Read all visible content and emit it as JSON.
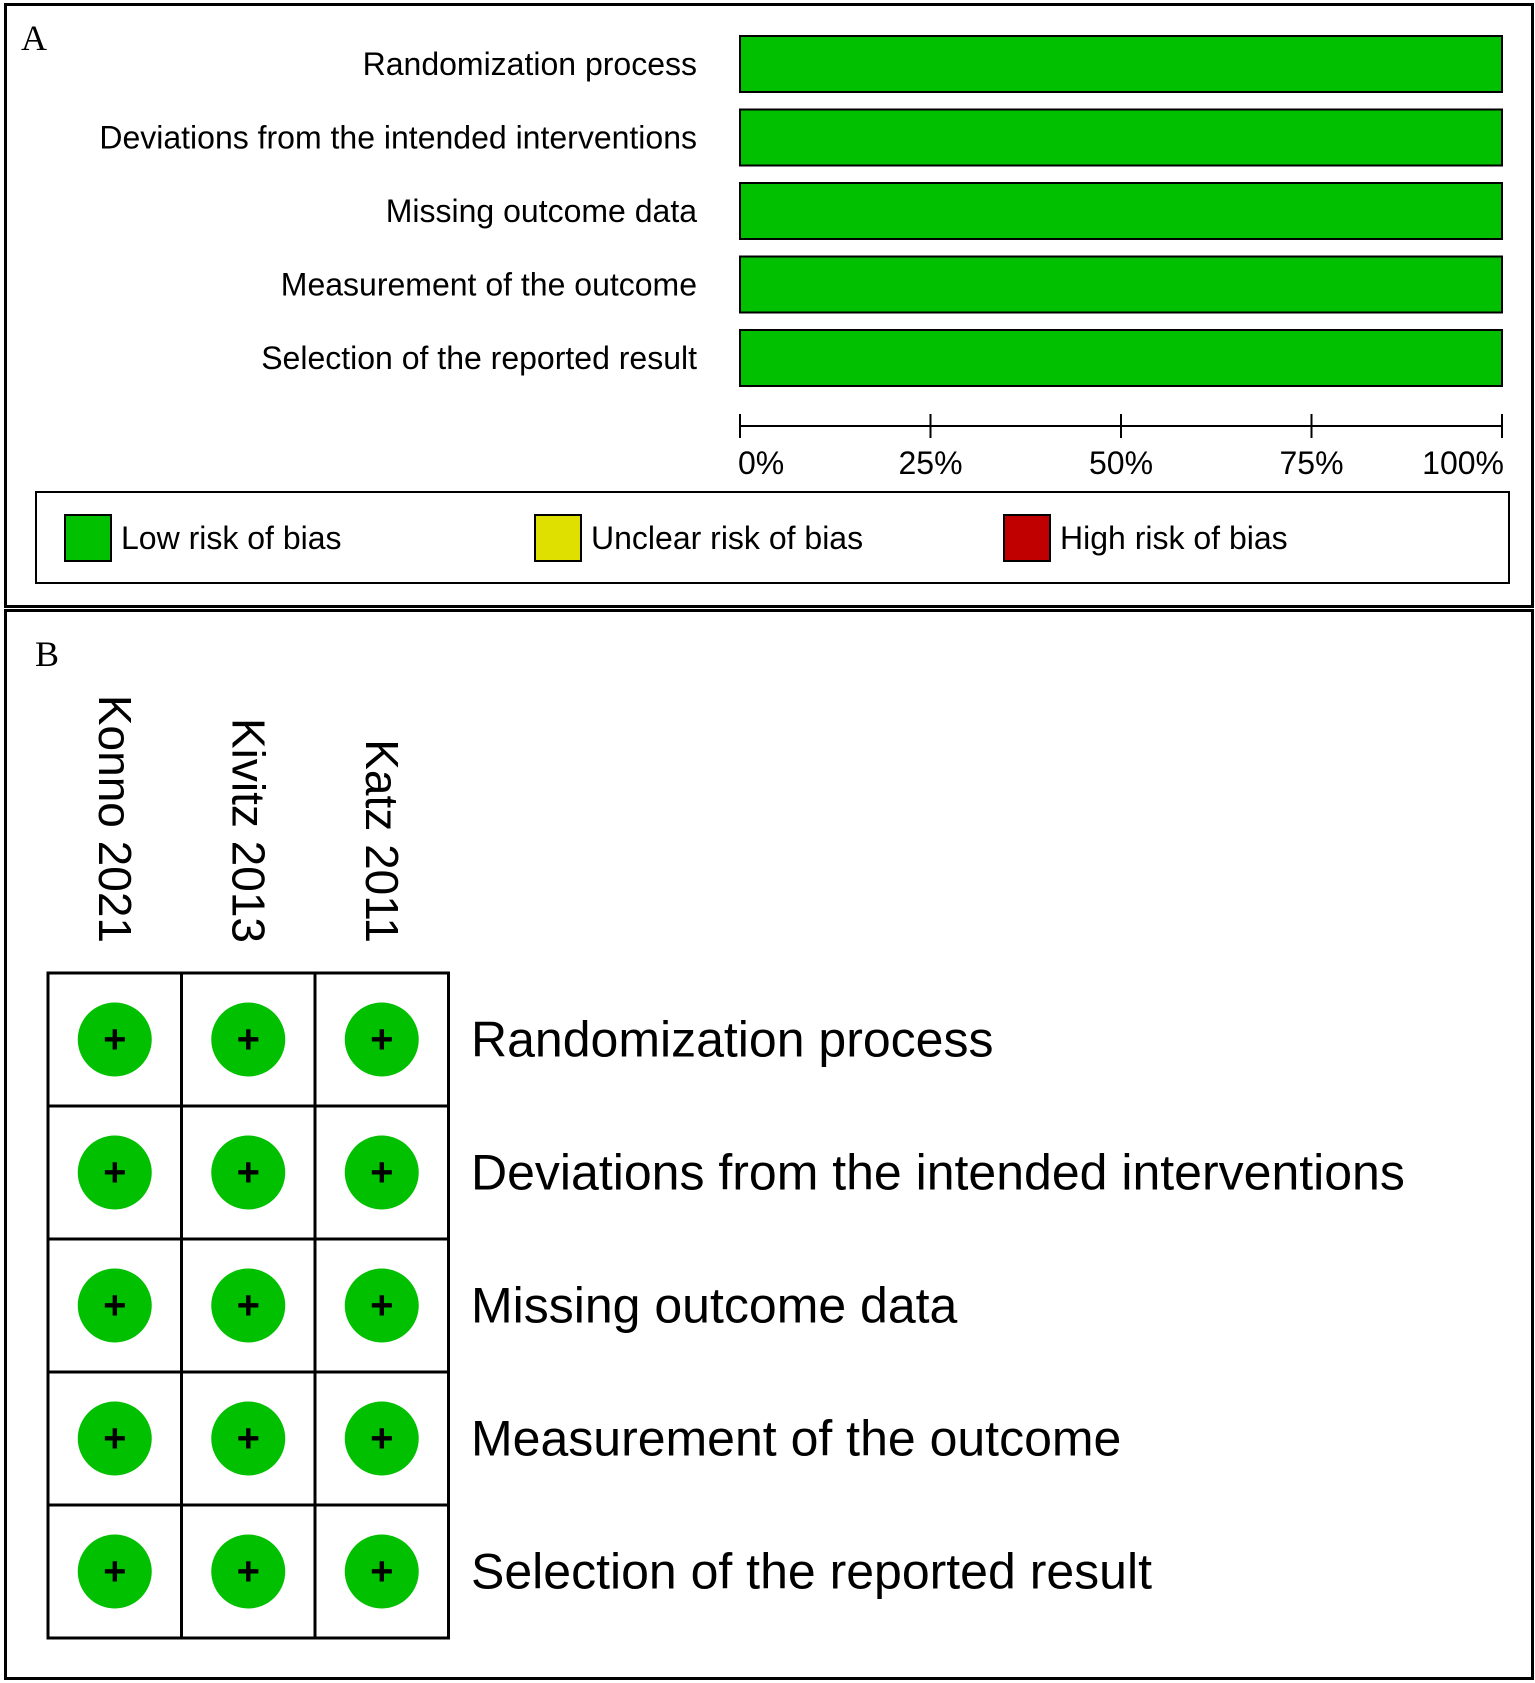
{
  "panel_a": {
    "letter": "A",
    "legend": [
      {
        "label": "Low risk of bias",
        "color": "#00c000"
      },
      {
        "label": "Unclear risk of bias",
        "color": "#e0e000"
      },
      {
        "label": "High risk of bias",
        "color": "#c00000"
      }
    ]
  },
  "panel_b": {
    "letter": "B",
    "symbol": "+"
  },
  "chart_data": [
    {
      "type": "bar",
      "orientation": "horizontal",
      "stacked": true,
      "categories": [
        "Randomization process",
        "Deviations from the intended interventions",
        "Missing outcome data",
        "Measurement of the outcome",
        "Selection of the reported result"
      ],
      "series": [
        {
          "name": "Low risk of bias",
          "color": "#00c000",
          "values": [
            100,
            100,
            100,
            100,
            100
          ]
        },
        {
          "name": "Unclear risk of bias",
          "color": "#e0e000",
          "values": [
            0,
            0,
            0,
            0,
            0
          ]
        },
        {
          "name": "High risk of bias",
          "color": "#c00000",
          "values": [
            0,
            0,
            0,
            0,
            0
          ]
        }
      ],
      "xlim": [
        0,
        100
      ],
      "xticks": [
        "0%",
        "25%",
        "50%",
        "75%",
        "100%"
      ],
      "legend": "bottom"
    },
    {
      "type": "table",
      "studies": [
        "Konno 2021",
        "Kivitz 2013",
        "Katz 2011"
      ],
      "domains": [
        "Randomization process",
        "Deviations from the intended interventions",
        "Missing outcome data",
        "Measurement of the outcome",
        "Selection of the reported result"
      ],
      "judgements": [
        [
          "low",
          "low",
          "low",
          "low",
          "low"
        ],
        [
          "low",
          "low",
          "low",
          "low",
          "low"
        ],
        [
          "low",
          "low",
          "low",
          "low",
          "low"
        ]
      ],
      "colors": {
        "low": "#00c000",
        "unclear": "#e0e000",
        "high": "#c00000"
      }
    }
  ]
}
